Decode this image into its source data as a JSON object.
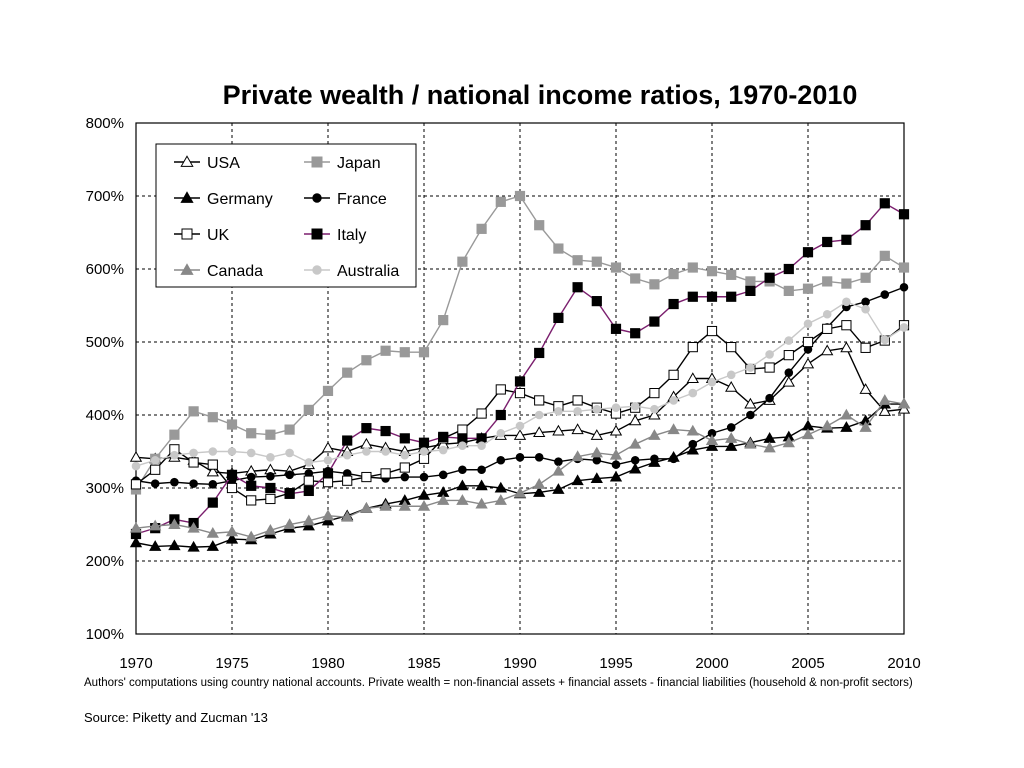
{
  "chart_data": {
    "type": "line",
    "title": "Private wealth / national income ratios, 1970-2010",
    "xlim": [
      1970,
      2010
    ],
    "ylim": [
      100,
      800
    ],
    "x_ticks": [
      1970,
      1975,
      1980,
      1985,
      1990,
      1995,
      2000,
      2005,
      2010
    ],
    "y_ticks": [
      "100%",
      "200%",
      "300%",
      "400%",
      "500%",
      "600%",
      "700%",
      "800%"
    ],
    "y_tick_values": [
      100,
      200,
      300,
      400,
      500,
      600,
      700,
      800
    ],
    "grid": true,
    "legend_position": "top-left",
    "note": "Authors' computations using country national accounts. Private wealth = non-financial assets + financial assets - financial liabilities (household & non-profit sectors)",
    "source": "Source: Piketty and Zucman '13",
    "x": [
      1970,
      1971,
      1972,
      1973,
      1974,
      1975,
      1976,
      1977,
      1978,
      1979,
      1980,
      1981,
      1982,
      1983,
      1984,
      1985,
      1986,
      1987,
      1988,
      1989,
      1990,
      1991,
      1992,
      1993,
      1994,
      1995,
      1996,
      1997,
      1998,
      1999,
      2000,
      2001,
      2002,
      2003,
      2004,
      2005,
      2006,
      2007,
      2008,
      2009,
      2010
    ],
    "series": [
      {
        "name": "USA",
        "color": "#000000",
        "line": "#000000",
        "marker": "triangle",
        "filled": false,
        "values": [
          342,
          340,
          342,
          338,
          322,
          320,
          323,
          325,
          323,
          332,
          355,
          350,
          360,
          355,
          350,
          355,
          360,
          362,
          368,
          372,
          372,
          376,
          378,
          380,
          372,
          378,
          392,
          400,
          425,
          450,
          450,
          438,
          415,
          420,
          445,
          470,
          488,
          492,
          435,
          405,
          408
        ]
      },
      {
        "name": "Japan",
        "color": "#999999",
        "line": "#999999",
        "marker": "square",
        "filled": true,
        "values": [
          298,
          340,
          373,
          405,
          397,
          387,
          375,
          373,
          380,
          407,
          433,
          458,
          475,
          488,
          486,
          486,
          530,
          610,
          655,
          692,
          700,
          660,
          628,
          612,
          610,
          602,
          587,
          579,
          593,
          602,
          597,
          592,
          583,
          583,
          570,
          573,
          583,
          580,
          588,
          618,
          602
        ]
      },
      {
        "name": "Germany",
        "color": "#000000",
        "line": "#000000",
        "marker": "triangle",
        "filled": true,
        "values": [
          225,
          220,
          221,
          219,
          220,
          230,
          229,
          237,
          245,
          248,
          255,
          262,
          272,
          278,
          283,
          290,
          294,
          303,
          303,
          300,
          292,
          294,
          298,
          310,
          313,
          315,
          326,
          335,
          342,
          352,
          357,
          357,
          362,
          368,
          370,
          385,
          382,
          383,
          392,
          415,
          415
        ]
      },
      {
        "name": "France",
        "color": "#000000",
        "line": "#000000",
        "marker": "circle",
        "filled": true,
        "values": [
          310,
          306,
          308,
          306,
          305,
          310,
          315,
          316,
          318,
          320,
          323,
          320,
          315,
          313,
          315,
          315,
          318,
          325,
          325,
          338,
          342,
          342,
          336,
          340,
          338,
          332,
          338,
          340,
          340,
          360,
          375,
          383,
          400,
          423,
          458,
          490,
          520,
          548,
          555,
          565,
          575
        ]
      },
      {
        "name": "UK",
        "color": "#000000",
        "line": "#000000",
        "marker": "square",
        "filled": false,
        "values": [
          305,
          325,
          353,
          335,
          332,
          300,
          283,
          285,
          293,
          310,
          308,
          310,
          315,
          320,
          328,
          340,
          368,
          380,
          402,
          435,
          430,
          420,
          412,
          420,
          410,
          402,
          410,
          430,
          455,
          493,
          515,
          493,
          463,
          465,
          482,
          500,
          518,
          523,
          492,
          502,
          523
        ]
      },
      {
        "name": "Italy",
        "color": "#000000",
        "line": "#7b1f6e",
        "marker": "square",
        "filled": true,
        "values": [
          237,
          245,
          257,
          252,
          280,
          318,
          303,
          300,
          292,
          296,
          320,
          365,
          382,
          378,
          368,
          362,
          370,
          368,
          368,
          400,
          446,
          485,
          533,
          575,
          556,
          518,
          512,
          528,
          552,
          562,
          562,
          562,
          570,
          588,
          600,
          623,
          637,
          640,
          660,
          690,
          675
        ]
      },
      {
        "name": "Canada",
        "color": "#888888",
        "line": "#888888",
        "marker": "triangle",
        "filled": true,
        "values": [
          245,
          248,
          250,
          245,
          238,
          240,
          233,
          242,
          250,
          255,
          262,
          260,
          272,
          275,
          275,
          275,
          283,
          283,
          278,
          283,
          293,
          305,
          323,
          343,
          348,
          345,
          360,
          372,
          380,
          378,
          365,
          368,
          360,
          355,
          362,
          373,
          385,
          400,
          383,
          420,
          415
        ]
      },
      {
        "name": "Australia",
        "color": "#c8c8c8",
        "line": "#c8c8c8",
        "marker": "circle",
        "filled": true,
        "values": [
          330,
          338,
          345,
          348,
          350,
          350,
          348,
          342,
          348,
          335,
          338,
          345,
          350,
          350,
          345,
          350,
          352,
          358,
          358,
          375,
          385,
          400,
          405,
          405,
          408,
          410,
          412,
          408,
          420,
          430,
          445,
          455,
          465,
          483,
          502,
          525,
          538,
          555,
          545,
          503,
          520
        ]
      }
    ]
  }
}
